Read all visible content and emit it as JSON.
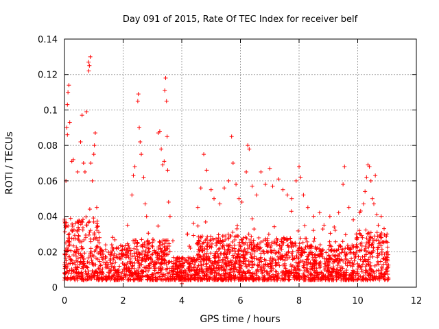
{
  "chart_data": {
    "type": "scatter",
    "title": "Day 091 of 2015, Rate Of TEC Index for receiver belf",
    "xlabel": "GPS time / hours",
    "ylabel": "ROTI / TECUs",
    "xlim": [
      0,
      12
    ],
    "ylim": [
      0,
      0.14
    ],
    "xticks": [
      0,
      2,
      4,
      6,
      8,
      10,
      12
    ],
    "xtick_labels": [
      "0",
      "2",
      "4",
      "6",
      "8",
      "10",
      "12"
    ],
    "yticks": [
      0,
      0.02,
      0.04,
      0.06,
      0.08,
      0.1,
      0.12,
      0.14
    ],
    "ytick_labels": [
      "0",
      "0.02",
      "0.04",
      "0.06",
      "0.08",
      "0.1",
      "0.12",
      "0.14"
    ],
    "grid": true,
    "marker": "+",
    "color": "#ff0000",
    "series": [
      {
        "name": "ROTI",
        "points": [
          [
            0.1,
            0.103
          ],
          [
            0.15,
            0.114
          ],
          [
            0.12,
            0.11
          ],
          [
            0.08,
            0.09
          ],
          [
            0.18,
            0.093
          ],
          [
            0.1,
            0.086
          ],
          [
            0.05,
            0.06
          ],
          [
            0.25,
            0.071
          ],
          [
            0.3,
            0.072
          ],
          [
            0.45,
            0.065
          ],
          [
            0.55,
            0.082
          ],
          [
            0.6,
            0.097
          ],
          [
            0.65,
            0.07
          ],
          [
            0.7,
            0.065
          ],
          [
            0.75,
            0.099
          ],
          [
            0.82,
            0.127
          ],
          [
            0.85,
            0.125
          ],
          [
            0.88,
            0.13
          ],
          [
            0.83,
            0.122
          ],
          [
            0.9,
            0.07
          ],
          [
            0.95,
            0.06
          ],
          [
            1.02,
            0.08
          ],
          [
            1.05,
            0.087
          ],
          [
            1.0,
            0.075
          ],
          [
            1.1,
            0.045
          ],
          [
            2.15,
            0.035
          ],
          [
            2.3,
            0.052
          ],
          [
            2.35,
            0.063
          ],
          [
            2.4,
            0.068
          ],
          [
            2.5,
            0.105
          ],
          [
            2.52,
            0.109
          ],
          [
            2.55,
            0.09
          ],
          [
            2.58,
            0.082
          ],
          [
            2.62,
            0.075
          ],
          [
            2.7,
            0.062
          ],
          [
            2.75,
            0.047
          ],
          [
            2.8,
            0.04
          ],
          [
            3.2,
            0.087
          ],
          [
            3.25,
            0.088
          ],
          [
            3.3,
            0.078
          ],
          [
            3.35,
            0.069
          ],
          [
            3.4,
            0.071
          ],
          [
            3.42,
            0.111
          ],
          [
            3.45,
            0.118
          ],
          [
            3.48,
            0.105
          ],
          [
            3.5,
            0.085
          ],
          [
            3.52,
            0.066
          ],
          [
            3.55,
            0.048
          ],
          [
            3.6,
            0.04
          ],
          [
            4.2,
            0.03
          ],
          [
            4.4,
            0.036
          ],
          [
            4.55,
            0.045
          ],
          [
            4.65,
            0.056
          ],
          [
            4.75,
            0.075
          ],
          [
            4.85,
            0.066
          ],
          [
            5.0,
            0.055
          ],
          [
            5.1,
            0.05
          ],
          [
            5.3,
            0.047
          ],
          [
            5.45,
            0.056
          ],
          [
            5.6,
            0.06
          ],
          [
            5.7,
            0.085
          ],
          [
            5.75,
            0.07
          ],
          [
            5.85,
            0.058
          ],
          [
            5.95,
            0.05
          ],
          [
            6.05,
            0.048
          ],
          [
            6.2,
            0.065
          ],
          [
            6.25,
            0.08
          ],
          [
            6.3,
            0.078
          ],
          [
            6.4,
            0.057
          ],
          [
            6.55,
            0.052
          ],
          [
            6.7,
            0.065
          ],
          [
            6.85,
            0.058
          ],
          [
            7.0,
            0.067
          ],
          [
            7.1,
            0.057
          ],
          [
            7.3,
            0.061
          ],
          [
            7.45,
            0.055
          ],
          [
            7.6,
            0.052
          ],
          [
            7.75,
            0.05
          ],
          [
            7.9,
            0.06
          ],
          [
            8.0,
            0.068
          ],
          [
            8.05,
            0.062
          ],
          [
            8.15,
            0.052
          ],
          [
            8.3,
            0.045
          ],
          [
            8.5,
            0.04
          ],
          [
            8.7,
            0.042
          ],
          [
            8.85,
            0.035
          ],
          [
            9.05,
            0.04
          ],
          [
            9.2,
            0.034
          ],
          [
            9.35,
            0.042
          ],
          [
            9.5,
            0.058
          ],
          [
            9.55,
            0.068
          ],
          [
            9.7,
            0.045
          ],
          [
            9.85,
            0.038
          ],
          [
            9.95,
            0.03
          ],
          [
            10.05,
            0.032
          ],
          [
            10.1,
            0.043
          ],
          [
            10.2,
            0.047
          ],
          [
            10.25,
            0.054
          ],
          [
            10.3,
            0.062
          ],
          [
            10.35,
            0.069
          ],
          [
            10.4,
            0.068
          ],
          [
            10.45,
            0.06
          ],
          [
            10.5,
            0.05
          ],
          [
            10.55,
            0.047
          ],
          [
            10.6,
            0.063
          ],
          [
            10.65,
            0.041
          ],
          [
            10.7,
            0.035
          ],
          [
            10.8,
            0.04
          ],
          [
            10.9,
            0.033
          ],
          [
            11.0,
            0.03
          ],
          [
            4.0,
            0.002
          ],
          [
            4.05,
            0.004
          ],
          [
            3.95,
            0.006
          ]
        ]
      }
    ]
  }
}
